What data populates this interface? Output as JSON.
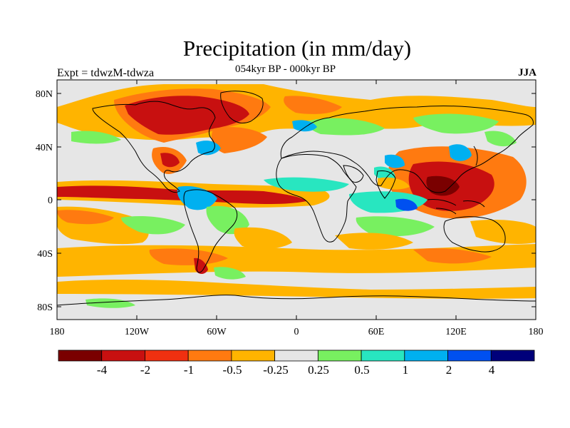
{
  "title": "Precipitation (in mm/day)",
  "subtitle": "054kyr BP - 000kyr BP",
  "left_label": "Expt = tdwzM-tdwza",
  "right_label": "JJA",
  "lat_ticks": [
    "80N",
    "40N",
    "0",
    "40S",
    "80S"
  ],
  "lon_ticks": [
    "180",
    "120W",
    "60W",
    "0",
    "60E",
    "120E",
    "180"
  ],
  "colorbar": {
    "colors": [
      "#7a0000",
      "#c81010",
      "#f03010",
      "#ff7a10",
      "#ffb400",
      "#e6e6e6",
      "#78f060",
      "#28e6c0",
      "#00b0f0",
      "#0050f0",
      "#00007a"
    ],
    "labels": [
      "-4",
      "-2",
      "-1",
      "-0.5",
      "-0.25",
      "0.25",
      "0.5",
      "1",
      "2",
      "4"
    ]
  },
  "colors": {
    "dry_strong": "#c81010",
    "dry": "#f03010",
    "dry_mid": "#ff7a10",
    "dry_light": "#ffb400",
    "neutral": "#e6e6e6",
    "wet_light": "#78f060",
    "wet_mid": "#28e6c0",
    "wet": "#00b0f0",
    "wet_strong": "#0050f0"
  }
}
